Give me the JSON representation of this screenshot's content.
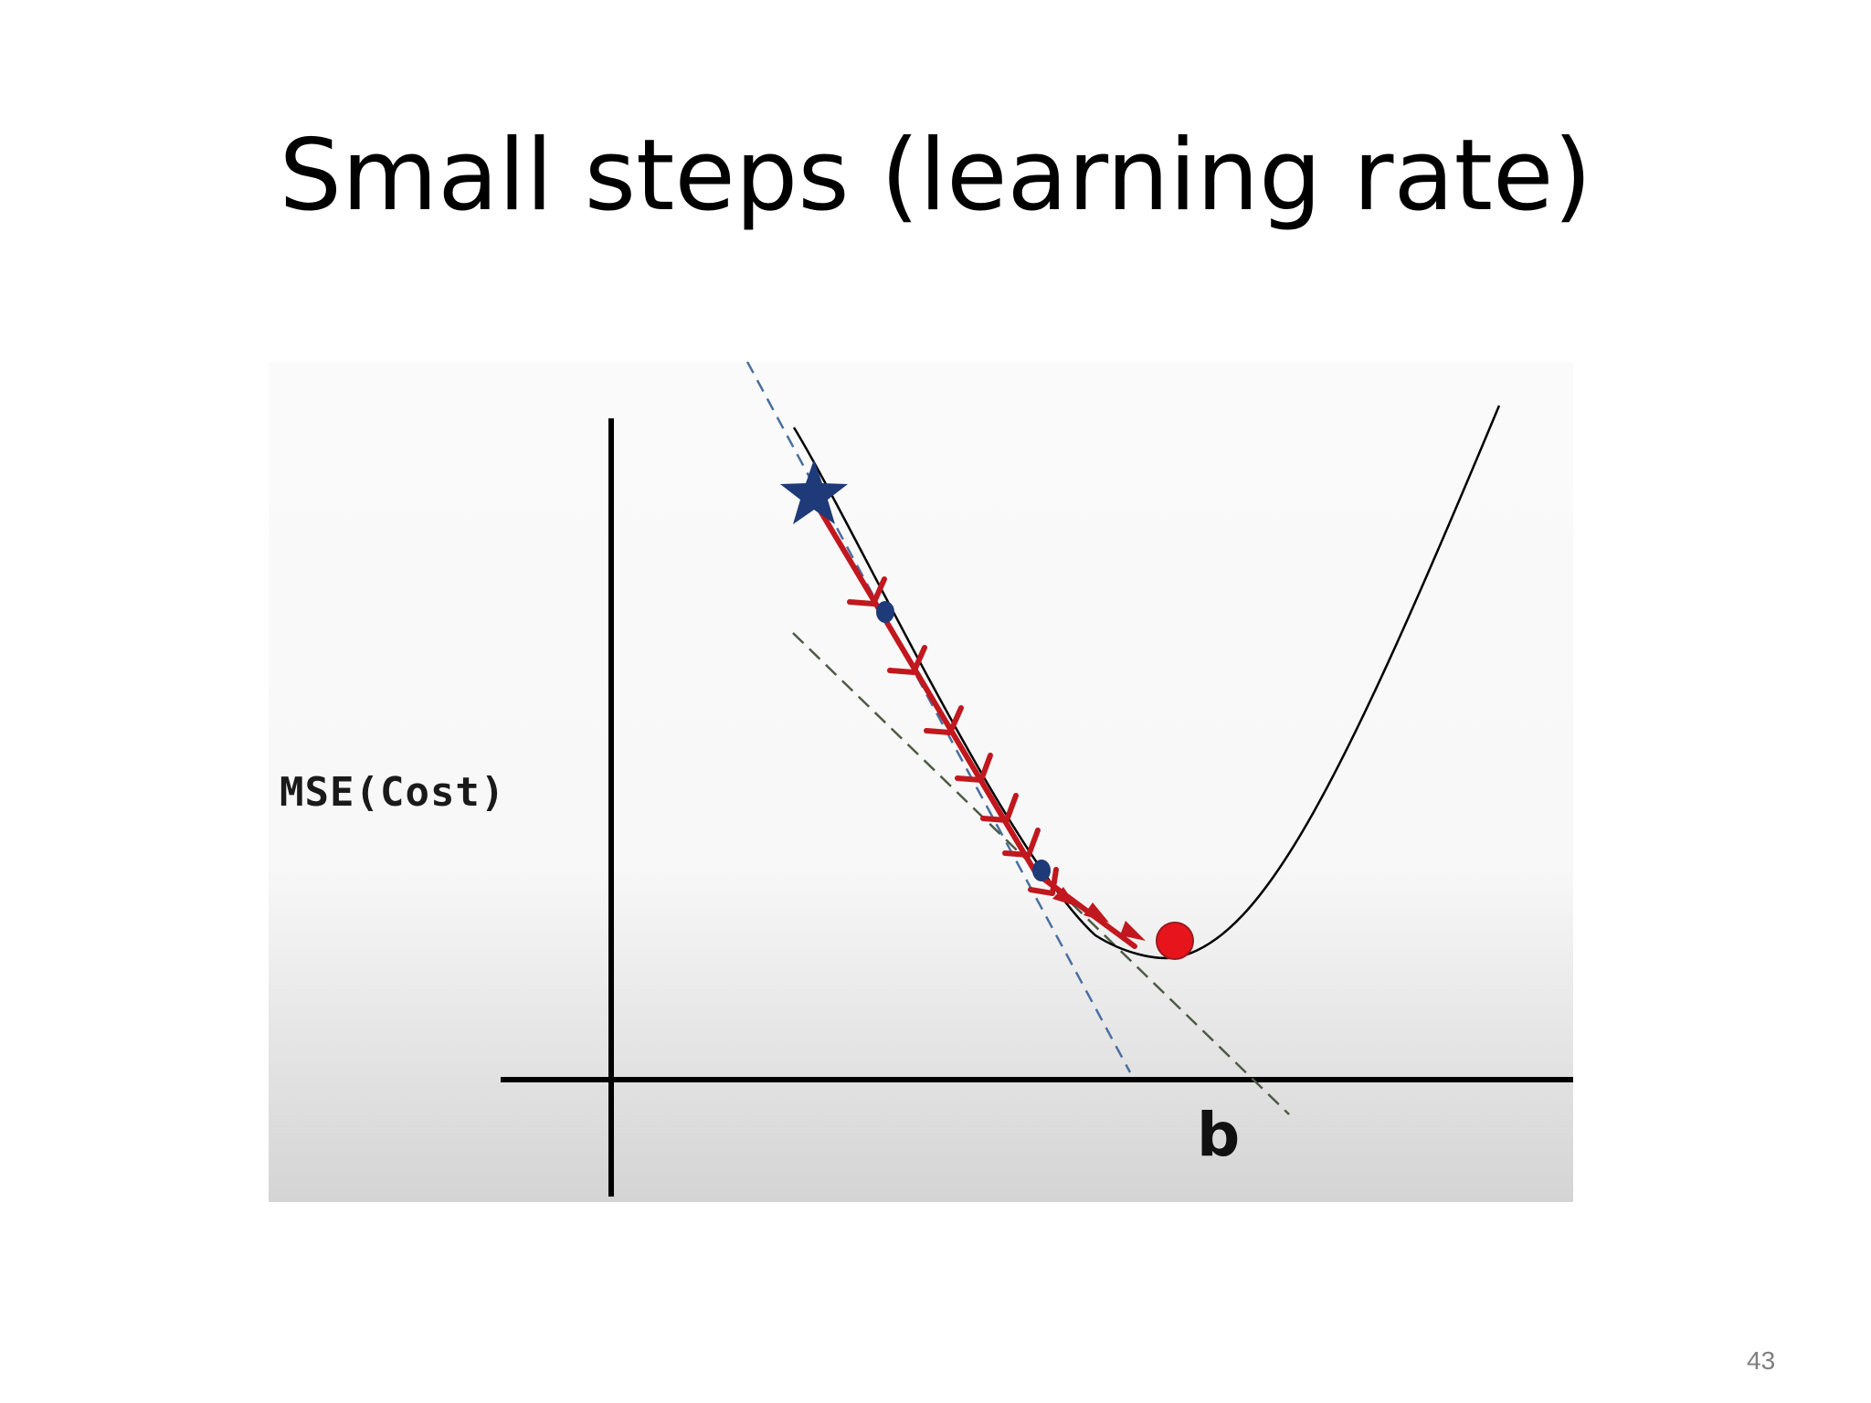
{
  "slide": {
    "title": "Small steps (learning rate)",
    "page_number": "43"
  },
  "diagram": {
    "y_axis_label": "MSE(Cost)",
    "x_axis_label": "b",
    "elements": [
      "cost-curve",
      "start-star",
      "descent-steps",
      "tangent-line-start",
      "tangent-line-mid",
      "minimum-point"
    ],
    "descent_step_count": 10
  },
  "colors": {
    "curve": "#000000",
    "descent_arrows": "#c0181e",
    "start_star": "#1f3a78",
    "step_dots": "#1f3a78",
    "minimum_point": "#e8141b",
    "tangent_start": "#4a6fa0",
    "tangent_mid": "#4d5a45"
  }
}
